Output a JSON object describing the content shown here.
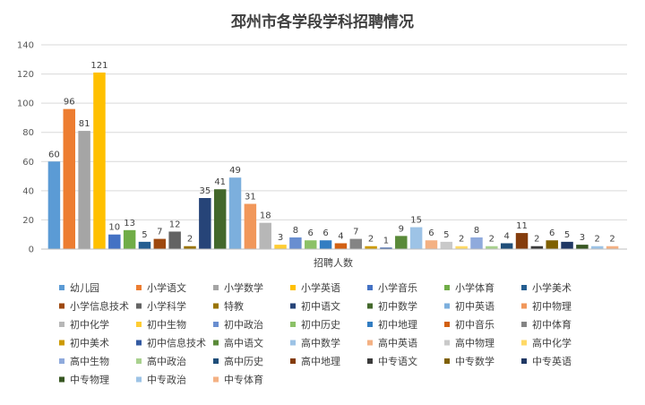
{
  "chart_data": {
    "type": "bar",
    "title": "邳州市各学段学科招聘情况",
    "xlabel": "招聘人数",
    "ylabel": "",
    "ylim": [
      0,
      140
    ],
    "yticks": [
      0,
      20,
      40,
      60,
      80,
      100,
      120,
      140
    ],
    "grid": true,
    "legend_position": "bottom",
    "series": [
      {
        "name": "幼儿园",
        "value": 60,
        "color": "#5B9BD5"
      },
      {
        "name": "小学语文",
        "value": 96,
        "color": "#ED7D31"
      },
      {
        "name": "小学数学",
        "value": 81,
        "color": "#A5A5A5"
      },
      {
        "name": "小学英语",
        "value": 121,
        "color": "#FFC000"
      },
      {
        "name": "小学音乐",
        "value": 10,
        "color": "#4472C4"
      },
      {
        "name": "小学体育",
        "value": 13,
        "color": "#70AD47"
      },
      {
        "name": "小学美术",
        "value": 5,
        "color": "#255E91"
      },
      {
        "name": "小学信息技术",
        "value": 7,
        "color": "#9E480E"
      },
      {
        "name": "小学科学",
        "value": 12,
        "color": "#636363"
      },
      {
        "name": "特教",
        "value": 2,
        "color": "#997300"
      },
      {
        "name": "初中语文",
        "value": 35,
        "color": "#264478"
      },
      {
        "name": "初中数学",
        "value": 41,
        "color": "#43682B"
      },
      {
        "name": "初中英语",
        "value": 49,
        "color": "#7CAFDD"
      },
      {
        "name": "初中物理",
        "value": 31,
        "color": "#F1975A"
      },
      {
        "name": "初中化学",
        "value": 18,
        "color": "#B7B7B7"
      },
      {
        "name": "初中生物",
        "value": 3,
        "color": "#FFCD33"
      },
      {
        "name": "初中政治",
        "value": 8,
        "color": "#698ED0"
      },
      {
        "name": "初中历史",
        "value": 6,
        "color": "#8CC168"
      },
      {
        "name": "初中地理",
        "value": 6,
        "color": "#327DC2"
      },
      {
        "name": "初中音乐",
        "value": 4,
        "color": "#D26012"
      },
      {
        "name": "初中体育",
        "value": 7,
        "color": "#848484"
      },
      {
        "name": "初中美术",
        "value": 2,
        "color": "#CC9A00"
      },
      {
        "name": "初中信息技术",
        "value": 1,
        "color": "#335AA1"
      },
      {
        "name": "高中语文",
        "value": 9,
        "color": "#5A8A39"
      },
      {
        "name": "高中数学",
        "value": 15,
        "color": "#9DC3E6"
      },
      {
        "name": "高中英语",
        "value": 6,
        "color": "#F4B183"
      },
      {
        "name": "高中物理",
        "value": 5,
        "color": "#C9C9C9"
      },
      {
        "name": "高中化学",
        "value": 2,
        "color": "#FFD966"
      },
      {
        "name": "高中生物",
        "value": 8,
        "color": "#8FAADC"
      },
      {
        "name": "高中政治",
        "value": 2,
        "color": "#A9D18E"
      },
      {
        "name": "高中历史",
        "value": 4,
        "color": "#1F4E79"
      },
      {
        "name": "高中地理",
        "value": 11,
        "color": "#843C0C"
      },
      {
        "name": "中专语文",
        "value": 2,
        "color": "#3B3B3B"
      },
      {
        "name": "中专数学",
        "value": 6,
        "color": "#7F6000"
      },
      {
        "name": "中专英语",
        "value": 5,
        "color": "#203864"
      },
      {
        "name": "中专物理",
        "value": 3,
        "color": "#385723"
      },
      {
        "name": "中专政治",
        "value": 2,
        "color": "#9DC3E6"
      },
      {
        "name": "中专体育",
        "value": 2,
        "color": "#F4B183"
      }
    ]
  }
}
